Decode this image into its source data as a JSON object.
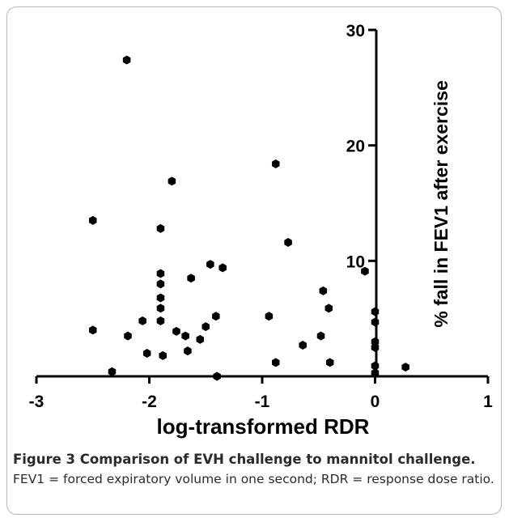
{
  "chart_data": {
    "type": "scatter",
    "xlabel": "log-transformed RDR",
    "ylabel": "% fall in FEV1 after exercise",
    "xlim": [
      -3,
      1
    ],
    "ylim": [
      0,
      30
    ],
    "x_ticks": [
      -3,
      -2,
      -1,
      0,
      1
    ],
    "y_ticks": [
      10,
      20,
      30
    ],
    "grid": false,
    "legend": "none",
    "marker_color": "#000000",
    "points": [
      {
        "x": -2.2,
        "y": 27.4
      },
      {
        "x": -2.5,
        "y": 13.5
      },
      {
        "x": -2.5,
        "y": 4.0
      },
      {
        "x": -2.33,
        "y": 0.4
      },
      {
        "x": -2.19,
        "y": 3.5
      },
      {
        "x": -2.06,
        "y": 4.8
      },
      {
        "x": -2.02,
        "y": 2.0
      },
      {
        "x": -1.9,
        "y": 12.8
      },
      {
        "x": -1.9,
        "y": 8.9
      },
      {
        "x": -1.9,
        "y": 8.0
      },
      {
        "x": -1.9,
        "y": 6.8
      },
      {
        "x": -1.9,
        "y": 5.9
      },
      {
        "x": -1.9,
        "y": 4.8
      },
      {
        "x": -1.88,
        "y": 1.8
      },
      {
        "x": -1.8,
        "y": 16.9
      },
      {
        "x": -1.76,
        "y": 3.9
      },
      {
        "x": -1.68,
        "y": 3.5
      },
      {
        "x": -1.66,
        "y": 2.2
      },
      {
        "x": -1.63,
        "y": 8.5
      },
      {
        "x": -1.55,
        "y": 3.2
      },
      {
        "x": -1.5,
        "y": 4.3
      },
      {
        "x": -1.46,
        "y": 9.7
      },
      {
        "x": -1.41,
        "y": 5.2
      },
      {
        "x": -1.4,
        "y": 0.0
      },
      {
        "x": -1.35,
        "y": 9.4
      },
      {
        "x": -0.94,
        "y": 5.2
      },
      {
        "x": -0.88,
        "y": 18.4
      },
      {
        "x": -0.88,
        "y": 1.2
      },
      {
        "x": -0.77,
        "y": 11.6
      },
      {
        "x": -0.64,
        "y": 2.7
      },
      {
        "x": -0.48,
        "y": 3.5
      },
      {
        "x": -0.46,
        "y": 7.4
      },
      {
        "x": -0.41,
        "y": 5.9
      },
      {
        "x": -0.4,
        "y": 1.2
      },
      {
        "x": -0.09,
        "y": 9.1
      },
      {
        "x": 0.0,
        "y": 5.6
      },
      {
        "x": 0.0,
        "y": 4.7
      },
      {
        "x": 0.0,
        "y": 3.0
      },
      {
        "x": 0.0,
        "y": 2.5
      },
      {
        "x": 0.0,
        "y": 0.9
      },
      {
        "x": 0.0,
        "y": 0.3
      },
      {
        "x": 0.27,
        "y": 0.8
      }
    ]
  },
  "caption": {
    "title": "Figure 3 Comparison of EVH challenge to mannitol challenge.",
    "body": "FEV1 = forced expiratory volume in one second; RDR = response dose ratio."
  }
}
